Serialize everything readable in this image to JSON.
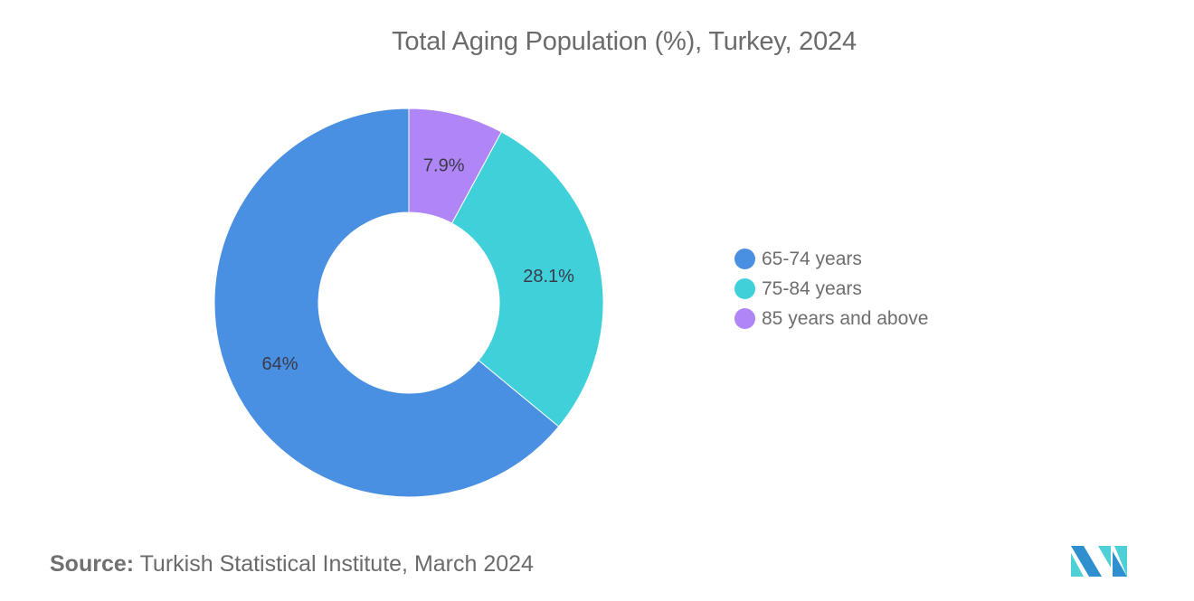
{
  "chart_data": {
    "type": "pie",
    "subtype": "donut",
    "title": "Total Aging Population (%), Turkey, 2024",
    "categories": [
      "65-74 years",
      "75-84 years",
      "85 years and above"
    ],
    "values": [
      64,
      28.1,
      7.9
    ],
    "labels": [
      "64%",
      "28.1%",
      "7.9%"
    ],
    "colors": [
      "#4a90e2",
      "#40d0da",
      "#b085f5"
    ],
    "legend_position": "right",
    "source": "Turkish Statistical Institute, March 2024"
  },
  "header": {
    "title": "Total Aging Population (%), Turkey, 2024"
  },
  "legend": {
    "items": [
      {
        "label": "65-74 years",
        "color": "#4a90e2"
      },
      {
        "label": "75-84 years",
        "color": "#40d0da"
      },
      {
        "label": "85 years and above",
        "color": "#b085f5"
      }
    ]
  },
  "footer": {
    "source_label": "Source:",
    "source_text": "Turkish Statistical Institute, March 2024"
  },
  "logo": {
    "name": "mordor-intelligence-logo",
    "colors": [
      "#2f8fcf",
      "#4fd0d6"
    ]
  }
}
